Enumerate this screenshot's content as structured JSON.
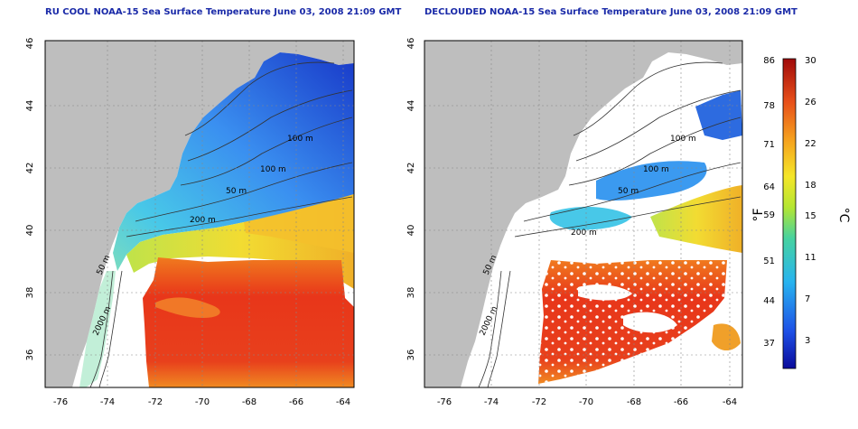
{
  "panels": [
    {
      "title": "RU COOL NOAA-15 Sea Surface Temperature June 03, 2008 21:09 GMT",
      "contour_labels": [
        "100 m",
        "100 m",
        "50 m",
        "200 m",
        "50 m",
        "2000 m"
      ]
    },
    {
      "title": "DECLOUDED NOAA-15 Sea Surface Temperature June 03, 2008 21:09 GMT",
      "contour_labels": [
        "100 m",
        "100 m",
        "50 m",
        "200 m",
        "50 m",
        "2000 m"
      ]
    }
  ],
  "axes": {
    "x_ticks": [
      "-76",
      "-74",
      "-72",
      "-70",
      "-68",
      "-66",
      "-64"
    ],
    "y_ticks": [
      "36",
      "38",
      "40",
      "42",
      "44",
      "46"
    ]
  },
  "colorbar": {
    "f_ticks": [
      "86",
      "78",
      "71",
      "64",
      "59",
      "51",
      "44",
      "37"
    ],
    "c_ticks": [
      "30",
      "26",
      "22",
      "18",
      "15",
      "11",
      "7",
      "3"
    ],
    "f_label": "°F",
    "c_label": "°C"
  },
  "colors": {
    "land": "#bebebe",
    "warm": "#e8321a",
    "cool": "#2d6be0",
    "title": "#1a2aa8"
  }
}
